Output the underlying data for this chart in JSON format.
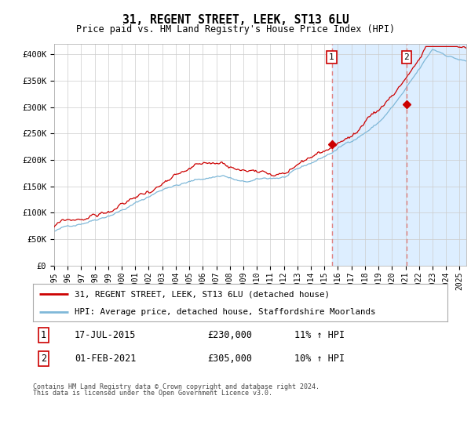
{
  "title": "31, REGENT STREET, LEEK, ST13 6LU",
  "subtitle": "Price paid vs. HM Land Registry's House Price Index (HPI)",
  "ylim": [
    0,
    420000
  ],
  "xlim_start": 1995.0,
  "xlim_end": 2025.5,
  "sale1_x": 2015.54,
  "sale1_y": 230000,
  "sale2_x": 2021.08,
  "sale2_y": 305000,
  "legend_line1": "31, REGENT STREET, LEEK, ST13 6LU (detached house)",
  "legend_line2": "HPI: Average price, detached house, Staffordshire Moorlands",
  "footnote1": "Contains HM Land Registry data © Crown copyright and database right 2024.",
  "footnote2": "This data is licensed under the Open Government Licence v3.0.",
  "hpi_color": "#7fb8d8",
  "price_color": "#cc0000",
  "vline_color": "#e08080",
  "shade_color": "#ddeeff",
  "background_color": "#ffffff",
  "grid_color": "#cccccc",
  "ytick_vals": [
    0,
    50000,
    100000,
    150000,
    200000,
    250000,
    300000,
    350000,
    400000
  ],
  "ytick_labels": [
    "£0",
    "£50K",
    "£100K",
    "£150K",
    "£200K",
    "£250K",
    "£300K",
    "£350K",
    "£400K"
  ]
}
